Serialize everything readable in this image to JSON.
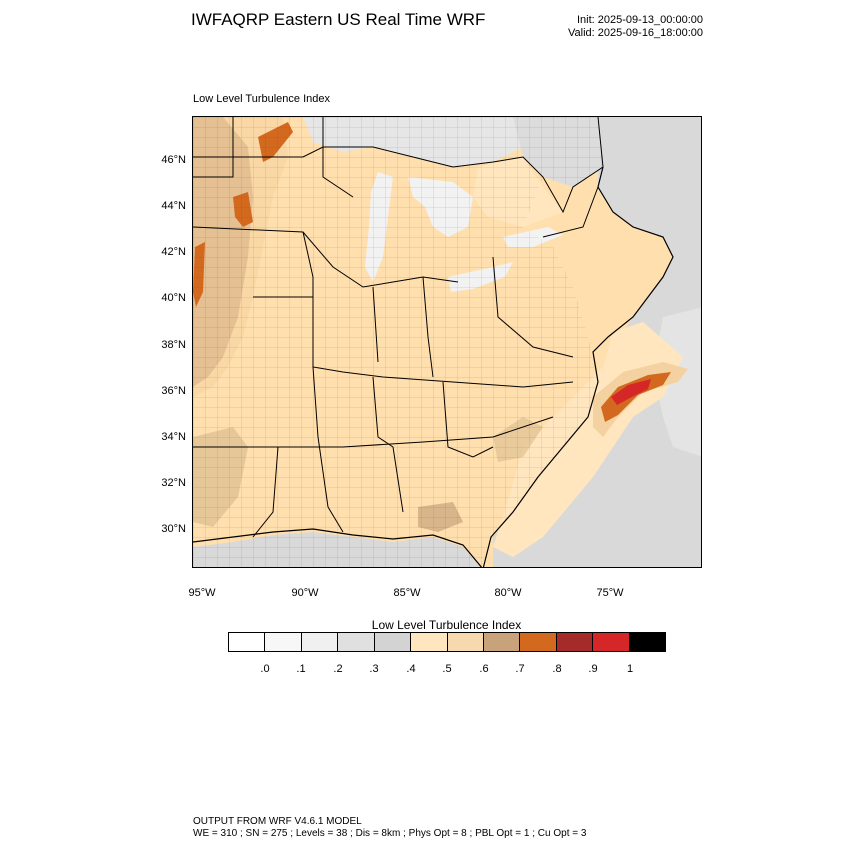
{
  "header": {
    "title": "IWFAQRP Eastern US Real Time WRF",
    "init": "Init: 2025-09-13_00:00:00",
    "valid": "Valid: 2025-09-16_18:00:00"
  },
  "map": {
    "subtitle": "Low Level Turbulence Index",
    "lat_labels": [
      "46°N",
      "44°N",
      "42°N",
      "40°N",
      "38°N",
      "36°N",
      "34°N",
      "32°N",
      "30°N"
    ],
    "lon_labels": [
      "95°W",
      "90°W",
      "85°W",
      "80°W",
      "75°W"
    ],
    "fill_colors": {
      "land_base": "#ffdfae",
      "low_0_5": "#ffe6be",
      "mid_0_6": "#f4d1a0",
      "tan_0_7": "#c8a27a",
      "orange_0_8": "#d2691e",
      "water_light": "#f2f2f2",
      "water_grey": "#d9d9d9",
      "red_0_9": "#d62728"
    }
  },
  "colorbar": {
    "title": "Low Level Turbulence Index",
    "colors": [
      "#ffffff",
      "#f7f7f7",
      "#f0f0f0",
      "#e0e0e0",
      "#d3d3d3",
      "#ffe6be",
      "#f7d9b0",
      "#c8a27a",
      "#d2691e",
      "#a52a2a",
      "#d62728",
      "#000000"
    ],
    "tick_labels": [
      ".0",
      ".1",
      ".2",
      ".3",
      ".4",
      ".5",
      ".6",
      ".7",
      ".8",
      ".9",
      "1"
    ]
  },
  "footer": {
    "line1": "OUTPUT FROM WRF V4.6.1 MODEL",
    "line2": "WE = 310 ; SN = 275 ; Levels = 38 ; Dis = 8km ; Phys Opt = 8 ; PBL Opt = 1 ; Cu Opt = 3"
  }
}
